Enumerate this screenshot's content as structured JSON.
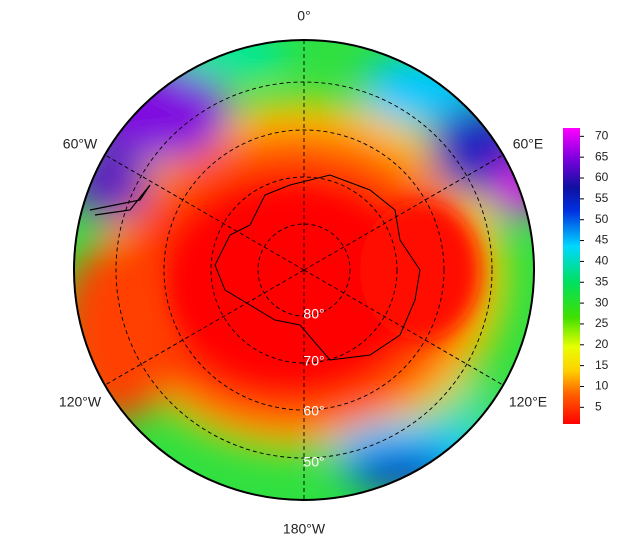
{
  "map": {
    "longitude_labels": [
      "0°",
      "60°E",
      "120°E",
      "180°W",
      "120°W",
      "60°W"
    ],
    "latitude_labels": [
      "80°",
      "70°",
      "60°",
      "50°"
    ]
  },
  "colorbar": {
    "range": [
      1,
      72
    ],
    "ticks": [
      5,
      10,
      15,
      20,
      25,
      30,
      35,
      40,
      45,
      50,
      55,
      60,
      65,
      70
    ]
  }
}
